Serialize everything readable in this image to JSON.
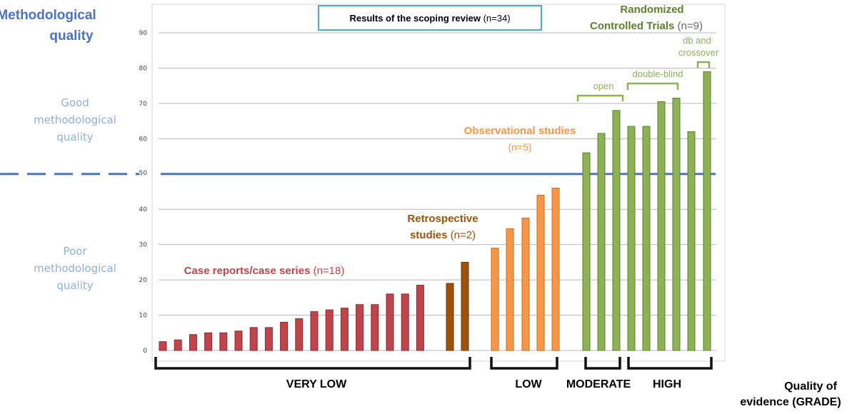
{
  "colors": {
    "case": "#c0444c",
    "case_stroke": "#8c2a30",
    "case_text": "#c0444c",
    "retro": "#a0520a",
    "retro_stroke": "#6e3504",
    "retro_text": "#a0520a",
    "obs": "#f79646",
    "obs_stroke": "#d06a18",
    "obs_text": "#f79646",
    "rct": "#8db255",
    "rct_stroke": "#5f7f2c",
    "rct_title": "#5f7f2c",
    "rct_sub": "#8db255",
    "axis_blue": "#4a74c0",
    "side_blue": "#8fb0d8",
    "title_blue": "#4a74c0",
    "grid": "#b9b9b9",
    "n_gray": "#666666"
  },
  "labels": {
    "method_title_1": "Methodological",
    "method_title_2": "quality",
    "good_1": "Good",
    "good_2": "methodological",
    "good_3": "quality",
    "poor_1": "Poor",
    "poor_2": "methodological",
    "poor_3": "quality",
    "results_box_bold": "Results of the scoping review",
    "results_box_n": " (n=34)",
    "case_label": "Case reports/case series",
    "case_n": " (n=18)",
    "retro_1": "Retrospective",
    "retro_2": "studies",
    "retro_n": " (n=2)",
    "obs_label": "Observational studies",
    "obs_n": "(n=5)",
    "rct_1": "Randomized",
    "rct_2": "Controlled Trials",
    "rct_n": " (n=9)",
    "open": "open",
    "double_blind": "double-blind",
    "db_1": "db and",
    "db_2": "crossover",
    "very_low": "VERY LOW",
    "low": "LOW",
    "moderate": "MODERATE",
    "high": "HIGH",
    "quality_1": "Quality of",
    "quality_2": "evidence (GRADE)"
  },
  "chart_data": {
    "type": "bar",
    "ylim": [
      0,
      90
    ],
    "yticks": [
      "0",
      "10",
      "20",
      "30",
      "40",
      "50",
      "60",
      "70",
      "80",
      "90"
    ],
    "threshold": 50,
    "grid": true,
    "series": [
      {
        "name": "Case reports/case series",
        "values": [
          2.5,
          3,
          4.5,
          5,
          5,
          5.5,
          6.5,
          6.5,
          8,
          9,
          11,
          11.5,
          12,
          13,
          13,
          16,
          16,
          18.5
        ]
      },
      {
        "name": "Retrospective studies",
        "values": [
          19,
          25
        ]
      },
      {
        "name": "Observational studies",
        "values": [
          29,
          34.5,
          37.5,
          44,
          46
        ]
      },
      {
        "name": "Randomized Controlled Trials",
        "values": [
          56,
          61.5,
          68,
          63.5,
          63.5,
          70.5,
          71.5,
          62,
          79
        ]
      }
    ]
  }
}
